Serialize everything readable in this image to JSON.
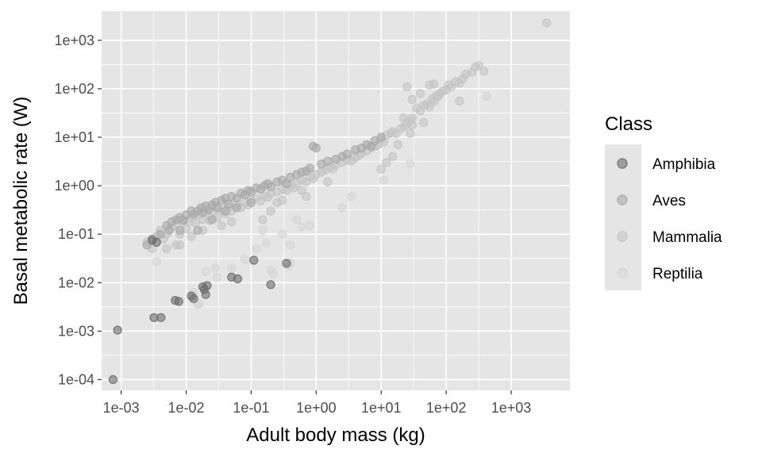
{
  "chart_data": {
    "type": "scatter",
    "title": "",
    "xlabel": "Adult body mass (kg)",
    "ylabel": "Basal metabolic rate (W)",
    "x_scale": "log10",
    "y_scale": "log10",
    "xlim": [
      0.0005,
      8000
    ],
    "ylim": [
      6e-05,
      4000
    ],
    "x_ticks": [
      {
        "value": 0.001,
        "label": "1e-03"
      },
      {
        "value": 0.01,
        "label": "1e-02"
      },
      {
        "value": 0.1,
        "label": "1e-01"
      },
      {
        "value": 1,
        "label": "1e+00"
      },
      {
        "value": 10,
        "label": "1e+01"
      },
      {
        "value": 100,
        "label": "1e+02"
      },
      {
        "value": 1000,
        "label": "1e+03"
      }
    ],
    "y_ticks": [
      {
        "value": 0.0001,
        "label": "1e-04"
      },
      {
        "value": 0.001,
        "label": "1e-03"
      },
      {
        "value": 0.01,
        "label": "1e-02"
      },
      {
        "value": 0.1,
        "label": "1e-01"
      },
      {
        "value": 1,
        "label": "1e+00"
      },
      {
        "value": 10,
        "label": "1e+01"
      },
      {
        "value": 100,
        "label": "1e+02"
      },
      {
        "value": 1000,
        "label": "1e+03"
      }
    ],
    "grid": true,
    "legend": {
      "title": "Class",
      "position": "right",
      "entries": [
        "Amphibia",
        "Aves",
        "Mammalia",
        "Reptilia"
      ]
    },
    "colors": {
      "panel": "#e5e5e5",
      "gridline": "#ffffff",
      "Amphibia": "#6e6e6e",
      "Aves": "#a8a8a8",
      "Mammalia": "#c4c4c4",
      "Reptilia": "#d6d6d6"
    },
    "series": [
      {
        "name": "Amphibia",
        "points": [
          [
            0.00075,
            0.0001
          ],
          [
            0.00088,
            0.00105
          ],
          [
            0.0032,
            0.0019
          ],
          [
            0.0041,
            0.0019
          ],
          [
            0.0068,
            0.0043
          ],
          [
            0.0077,
            0.0041
          ],
          [
            0.012,
            0.0053
          ],
          [
            0.013,
            0.0047
          ],
          [
            0.018,
            0.0082
          ],
          [
            0.019,
            0.0072
          ],
          [
            0.02,
            0.0057
          ],
          [
            0.021,
            0.0087
          ],
          [
            0.05,
            0.013
          ],
          [
            0.062,
            0.012
          ],
          [
            0.11,
            0.029
          ],
          [
            0.2,
            0.0091
          ],
          [
            0.35,
            0.025
          ],
          [
            0.003,
            0.075
          ],
          [
            0.0035,
            0.068
          ]
        ]
      },
      {
        "name": "Aves",
        "points": [
          [
            0.0025,
            0.06
          ],
          [
            0.003,
            0.08
          ],
          [
            0.004,
            0.1
          ],
          [
            0.005,
            0.15
          ],
          [
            0.0055,
            0.12
          ],
          [
            0.006,
            0.18
          ],
          [
            0.007,
            0.2
          ],
          [
            0.008,
            0.22
          ],
          [
            0.009,
            0.19
          ],
          [
            0.01,
            0.25
          ],
          [
            0.012,
            0.3
          ],
          [
            0.013,
            0.26
          ],
          [
            0.015,
            0.3
          ],
          [
            0.017,
            0.35
          ],
          [
            0.018,
            0.28
          ],
          [
            0.02,
            0.38
          ],
          [
            0.022,
            0.32
          ],
          [
            0.025,
            0.4
          ],
          [
            0.028,
            0.45
          ],
          [
            0.03,
            0.35
          ],
          [
            0.035,
            0.5
          ],
          [
            0.04,
            0.55
          ],
          [
            0.045,
            0.42
          ],
          [
            0.05,
            0.6
          ],
          [
            0.06,
            0.55
          ],
          [
            0.07,
            0.7
          ],
          [
            0.08,
            0.65
          ],
          [
            0.09,
            0.8
          ],
          [
            0.1,
            0.75
          ],
          [
            0.12,
            0.9
          ],
          [
            0.14,
            0.85
          ],
          [
            0.16,
            1.0
          ],
          [
            0.18,
            1.1
          ],
          [
            0.2,
            0.95
          ],
          [
            0.25,
            1.2
          ],
          [
            0.3,
            1.3
          ],
          [
            0.35,
            1.1
          ],
          [
            0.4,
            1.5
          ],
          [
            0.5,
            1.7
          ],
          [
            0.6,
            1.9
          ],
          [
            0.7,
            2.0
          ],
          [
            0.8,
            2.3
          ],
          [
            0.9,
            6.5
          ],
          [
            1.0,
            6.0
          ],
          [
            1.2,
            2.8
          ],
          [
            1.5,
            3.2
          ],
          [
            2.0,
            3.5
          ],
          [
            2.5,
            4.0
          ],
          [
            3.0,
            4.5
          ],
          [
            4.0,
            5.5
          ],
          [
            5.0,
            6.0
          ],
          [
            6.0,
            7.0
          ],
          [
            7.0,
            6.5
          ],
          [
            8.0,
            8.5
          ],
          [
            10.0,
            10.0
          ],
          [
            0.015,
            0.12
          ],
          [
            0.025,
            0.2
          ],
          [
            0.04,
            0.3
          ],
          [
            0.008,
            0.12
          ],
          [
            0.06,
            0.35
          ],
          [
            0.1,
            0.45
          ]
        ]
      },
      {
        "name": "Mammalia",
        "points": [
          [
            0.0025,
            0.07
          ],
          [
            0.003,
            0.05
          ],
          [
            0.0035,
            0.09
          ],
          [
            0.004,
            0.12
          ],
          [
            0.0045,
            0.08
          ],
          [
            0.005,
            0.1
          ],
          [
            0.006,
            0.14
          ],
          [
            0.007,
            0.16
          ],
          [
            0.008,
            0.1
          ],
          [
            0.009,
            0.2
          ],
          [
            0.01,
            0.13
          ],
          [
            0.011,
            0.18
          ],
          [
            0.012,
            0.22
          ],
          [
            0.014,
            0.17
          ],
          [
            0.016,
            0.25
          ],
          [
            0.018,
            0.2
          ],
          [
            0.02,
            0.27
          ],
          [
            0.023,
            0.19
          ],
          [
            0.026,
            0.3
          ],
          [
            0.03,
            0.22
          ],
          [
            0.035,
            0.32
          ],
          [
            0.04,
            0.26
          ],
          [
            0.045,
            0.36
          ],
          [
            0.05,
            0.3
          ],
          [
            0.06,
            0.4
          ],
          [
            0.07,
            0.35
          ],
          [
            0.08,
            0.45
          ],
          [
            0.09,
            0.4
          ],
          [
            0.1,
            0.5
          ],
          [
            0.12,
            0.55
          ],
          [
            0.14,
            0.48
          ],
          [
            0.16,
            0.62
          ],
          [
            0.18,
            0.58
          ],
          [
            0.2,
            0.68
          ],
          [
            0.25,
            0.75
          ],
          [
            0.3,
            0.85
          ],
          [
            0.35,
            0.8
          ],
          [
            0.4,
            1.0
          ],
          [
            0.45,
            0.9
          ],
          [
            0.5,
            1.1
          ],
          [
            0.6,
            1.3
          ],
          [
            0.7,
            1.2
          ],
          [
            0.8,
            1.5
          ],
          [
            0.9,
            1.4
          ],
          [
            1.0,
            1.7
          ],
          [
            1.2,
            1.9
          ],
          [
            1.4,
            2.1
          ],
          [
            1.6,
            2.4
          ],
          [
            1.8,
            2.2
          ],
          [
            2.0,
            2.7
          ],
          [
            2.5,
            3.0
          ],
          [
            3.0,
            3.4
          ],
          [
            3.5,
            3.2
          ],
          [
            4.0,
            3.8
          ],
          [
            4.5,
            4.2
          ],
          [
            5.0,
            4.6
          ],
          [
            6.0,
            5.2
          ],
          [
            7.0,
            6.0
          ],
          [
            8.0,
            6.5
          ],
          [
            9.0,
            7.0
          ],
          [
            10.0,
            9.0
          ],
          [
            11.0,
            8.0
          ],
          [
            12.0,
            11.0
          ],
          [
            14.0,
            12.0
          ],
          [
            15.0,
            13.0
          ],
          [
            17.0,
            12.0
          ],
          [
            20.0,
            15.0
          ],
          [
            23.0,
            17.0
          ],
          [
            25.0,
            20.0
          ],
          [
            28.0,
            22.0
          ],
          [
            30.0,
            25.0
          ],
          [
            35.0,
            40.0
          ],
          [
            40.0,
            35.0
          ],
          [
            45.0,
            45.0
          ],
          [
            50.0,
            48.0
          ],
          [
            55.0,
            42.0
          ],
          [
            60.0,
            60.0
          ],
          [
            65.0,
            55.0
          ],
          [
            70.0,
            70.0
          ],
          [
            80.0,
            80.0
          ],
          [
            90.0,
            90.0
          ],
          [
            100.0,
            95.0
          ],
          [
            110.0,
            120.0
          ],
          [
            120.0,
            110.0
          ],
          [
            140.0,
            140.0
          ],
          [
            160.0,
            130.0
          ],
          [
            180.0,
            160.0
          ],
          [
            200.0,
            200.0
          ],
          [
            250.0,
            220.0
          ],
          [
            280.0,
            280.0
          ],
          [
            320.0,
            300.0
          ],
          [
            380.0,
            230.0
          ],
          [
            3500.0,
            2300.0
          ],
          [
            25.0,
            110.0
          ],
          [
            30.0,
            60.0
          ],
          [
            40.0,
            80.0
          ],
          [
            55.0,
            120.0
          ],
          [
            65.0,
            125.0
          ],
          [
            75.0,
            70.0
          ],
          [
            160.0,
            56.0
          ],
          [
            22.0,
            25.0
          ],
          [
            28.0,
            12.0
          ],
          [
            30.0,
            18.0
          ],
          [
            45.0,
            20.0
          ],
          [
            18.0,
            7.0
          ],
          [
            15.0,
            4.0
          ],
          [
            12.0,
            3.0
          ],
          [
            10.0,
            2.2
          ],
          [
            0.15,
            0.2
          ],
          [
            0.2,
            0.3
          ],
          [
            0.25,
            0.45
          ],
          [
            0.3,
            0.5
          ],
          [
            0.6,
            0.8
          ],
          [
            0.7,
            0.6
          ],
          [
            1.5,
            1.2
          ],
          [
            0.012,
            0.09
          ],
          [
            0.008,
            0.06
          ],
          [
            0.005,
            0.05
          ],
          [
            0.007,
            0.06
          ],
          [
            0.018,
            0.12
          ],
          [
            0.035,
            0.15
          ],
          [
            0.05,
            0.18
          ]
        ]
      },
      {
        "name": "Reptilia",
        "points": [
          [
            0.0035,
            0.027
          ],
          [
            0.013,
            0.0063
          ],
          [
            0.016,
            0.0037
          ],
          [
            0.015,
            0.0035
          ],
          [
            0.02,
            0.017
          ],
          [
            0.028,
            0.02
          ],
          [
            0.03,
            0.013
          ],
          [
            0.05,
            0.02
          ],
          [
            0.08,
            0.03
          ],
          [
            0.12,
            0.05
          ],
          [
            0.15,
            0.12
          ],
          [
            0.17,
            0.065
          ],
          [
            0.2,
            0.018
          ],
          [
            0.22,
            0.015
          ],
          [
            0.3,
            0.1
          ],
          [
            0.38,
            0.022
          ],
          [
            0.4,
            0.06
          ],
          [
            0.5,
            0.2
          ],
          [
            0.6,
            0.14
          ],
          [
            0.8,
            0.15
          ],
          [
            2.5,
            0.35
          ],
          [
            3.5,
            0.6
          ],
          [
            11.0,
            1.3
          ],
          [
            28.0,
            2.8
          ],
          [
            420.0,
            70.0
          ],
          [
            0.4,
            0.026
          ]
        ]
      }
    ]
  }
}
